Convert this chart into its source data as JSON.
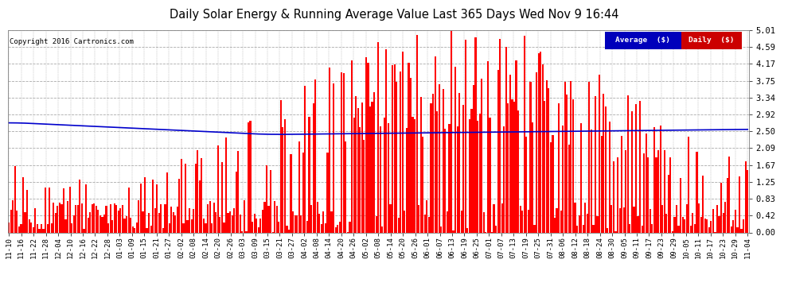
{
  "title": "Daily Solar Energy & Running Average Value Last 365 Days Wed Nov 9 16:44",
  "copyright": "Copyright 2016 Cartronics.com",
  "yticks": [
    0.0,
    0.42,
    0.83,
    1.25,
    1.67,
    2.09,
    2.5,
    2.92,
    3.34,
    3.75,
    4.17,
    4.59,
    5.01
  ],
  "ymax": 5.01,
  "ymin": 0.0,
  "bar_color": "#ff0000",
  "avg_color": "#0000cc",
  "background_color": "#ffffff",
  "legend_avg_color": "#0000bb",
  "legend_daily_color": "#cc0000",
  "title_fontsize": 11,
  "n_bars": 365,
  "x_tick_labels": [
    "11-10",
    "11-16",
    "11-22",
    "11-28",
    "12-04",
    "12-10",
    "12-16",
    "12-22",
    "12-28",
    "01-03",
    "01-09",
    "01-15",
    "01-21",
    "01-27",
    "02-02",
    "02-08",
    "02-14",
    "02-20",
    "02-26",
    "03-03",
    "03-09",
    "03-15",
    "03-21",
    "03-27",
    "04-02",
    "04-08",
    "04-14",
    "04-20",
    "04-26",
    "05-02",
    "05-08",
    "05-14",
    "05-20",
    "05-26",
    "06-01",
    "06-07",
    "06-13",
    "06-19",
    "06-25",
    "07-01",
    "07-07",
    "07-13",
    "07-19",
    "07-25",
    "07-31",
    "08-06",
    "08-12",
    "08-18",
    "08-24",
    "08-30",
    "09-05",
    "09-11",
    "09-17",
    "09-23",
    "09-29",
    "10-05",
    "10-11",
    "10-17",
    "10-23",
    "10-29",
    "11-04"
  ]
}
